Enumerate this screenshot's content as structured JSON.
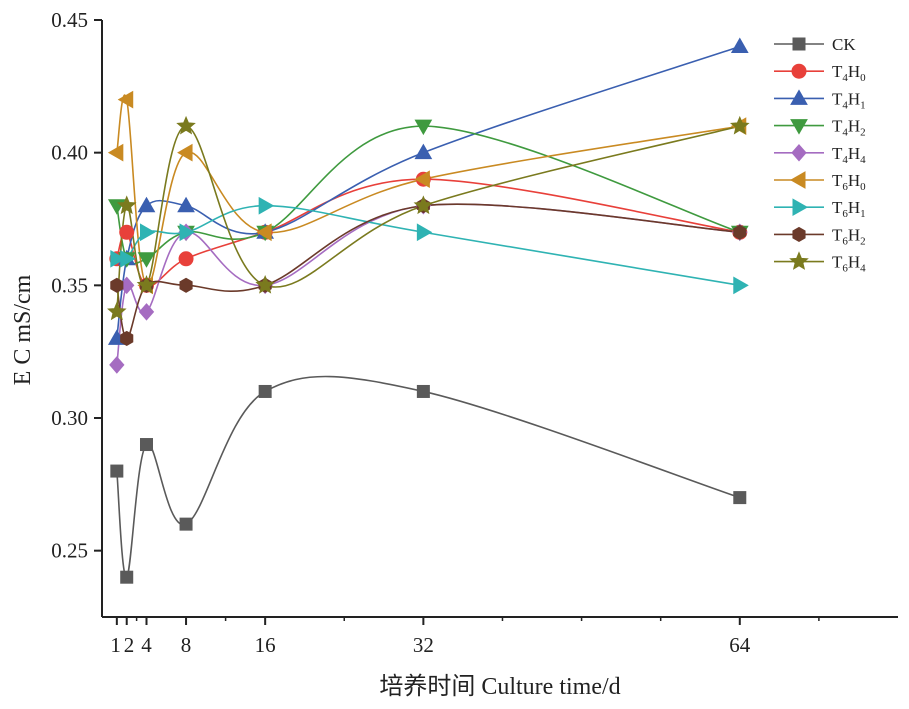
{
  "chart_data": {
    "type": "line",
    "title": "",
    "xlabel": "培养时间  Culture time/d",
    "ylabel": "E C mS/cm",
    "x": [
      1,
      2,
      4,
      8,
      16,
      32,
      64
    ],
    "x_ticks": [
      1,
      2,
      4,
      8,
      16,
      32,
      64
    ],
    "x_tick_labels": [
      "1",
      "2",
      "4",
      "8",
      "16",
      "32",
      "64"
    ],
    "xlim": [
      -0.5,
      80
    ],
    "ylim": [
      0.225,
      0.45
    ],
    "y_ticks": [
      0.25,
      0.3,
      0.35,
      0.4,
      0.45
    ],
    "y_tick_labels": [
      "0.25",
      "0.30",
      "0.35",
      "0.40",
      "0.45"
    ],
    "grid": false,
    "legend_position": "top-right",
    "series": [
      {
        "name": "CK",
        "base": "CK",
        "sub": "",
        "color": "#5a5a5a",
        "marker": "square",
        "values": [
          0.28,
          0.24,
          0.29,
          0.26,
          0.31,
          0.31,
          0.27
        ]
      },
      {
        "name": "T4H0",
        "base": "T",
        "sub": "4",
        "base2": "H",
        "sub2": "0",
        "color": "#e8403a",
        "marker": "circle",
        "values": [
          0.36,
          0.37,
          0.35,
          0.36,
          0.37,
          0.39,
          0.37
        ]
      },
      {
        "name": "T4H1",
        "base": "T",
        "sub": "4",
        "base2": "H",
        "sub2": "1",
        "color": "#3a5fb0",
        "marker": "triangle-up",
        "values": [
          0.33,
          0.36,
          0.38,
          0.38,
          0.37,
          0.4,
          0.44
        ]
      },
      {
        "name": "T4H2",
        "base": "T",
        "sub": "4",
        "base2": "H",
        "sub2": "2",
        "color": "#3f9a3f",
        "marker": "triangle-down",
        "values": [
          0.38,
          0.36,
          0.36,
          0.37,
          0.37,
          0.41,
          0.37
        ]
      },
      {
        "name": "T4H4",
        "base": "T",
        "sub": "4",
        "base2": "H",
        "sub2": "4",
        "color": "#a56cc1",
        "marker": "diamond",
        "values": [
          0.32,
          0.35,
          0.34,
          0.37,
          0.35,
          0.38,
          0.37
        ]
      },
      {
        "name": "T6H0",
        "base": "T",
        "sub": "6",
        "base2": "H",
        "sub2": "0",
        "color": "#c98a22",
        "marker": "triangle-left",
        "values": [
          0.4,
          0.42,
          0.35,
          0.4,
          0.37,
          0.39,
          0.41
        ]
      },
      {
        "name": "T6H1",
        "base": "T",
        "sub": "6",
        "base2": "H",
        "sub2": "1",
        "color": "#2fb3b3",
        "marker": "triangle-right",
        "values": [
          0.36,
          0.36,
          0.37,
          0.37,
          0.38,
          0.37,
          0.35
        ]
      },
      {
        "name": "T6H2",
        "base": "T",
        "sub": "6",
        "base2": "H",
        "sub2": "2",
        "color": "#6b3a2a",
        "marker": "hexagon",
        "values": [
          0.35,
          0.33,
          0.35,
          0.35,
          0.35,
          0.38,
          0.37
        ]
      },
      {
        "name": "T6H4",
        "base": "T",
        "sub": "6",
        "base2": "H",
        "sub2": "4",
        "color": "#7a7a1e",
        "marker": "star",
        "values": [
          0.34,
          0.38,
          0.35,
          0.41,
          0.35,
          0.38,
          0.41
        ]
      }
    ]
  }
}
